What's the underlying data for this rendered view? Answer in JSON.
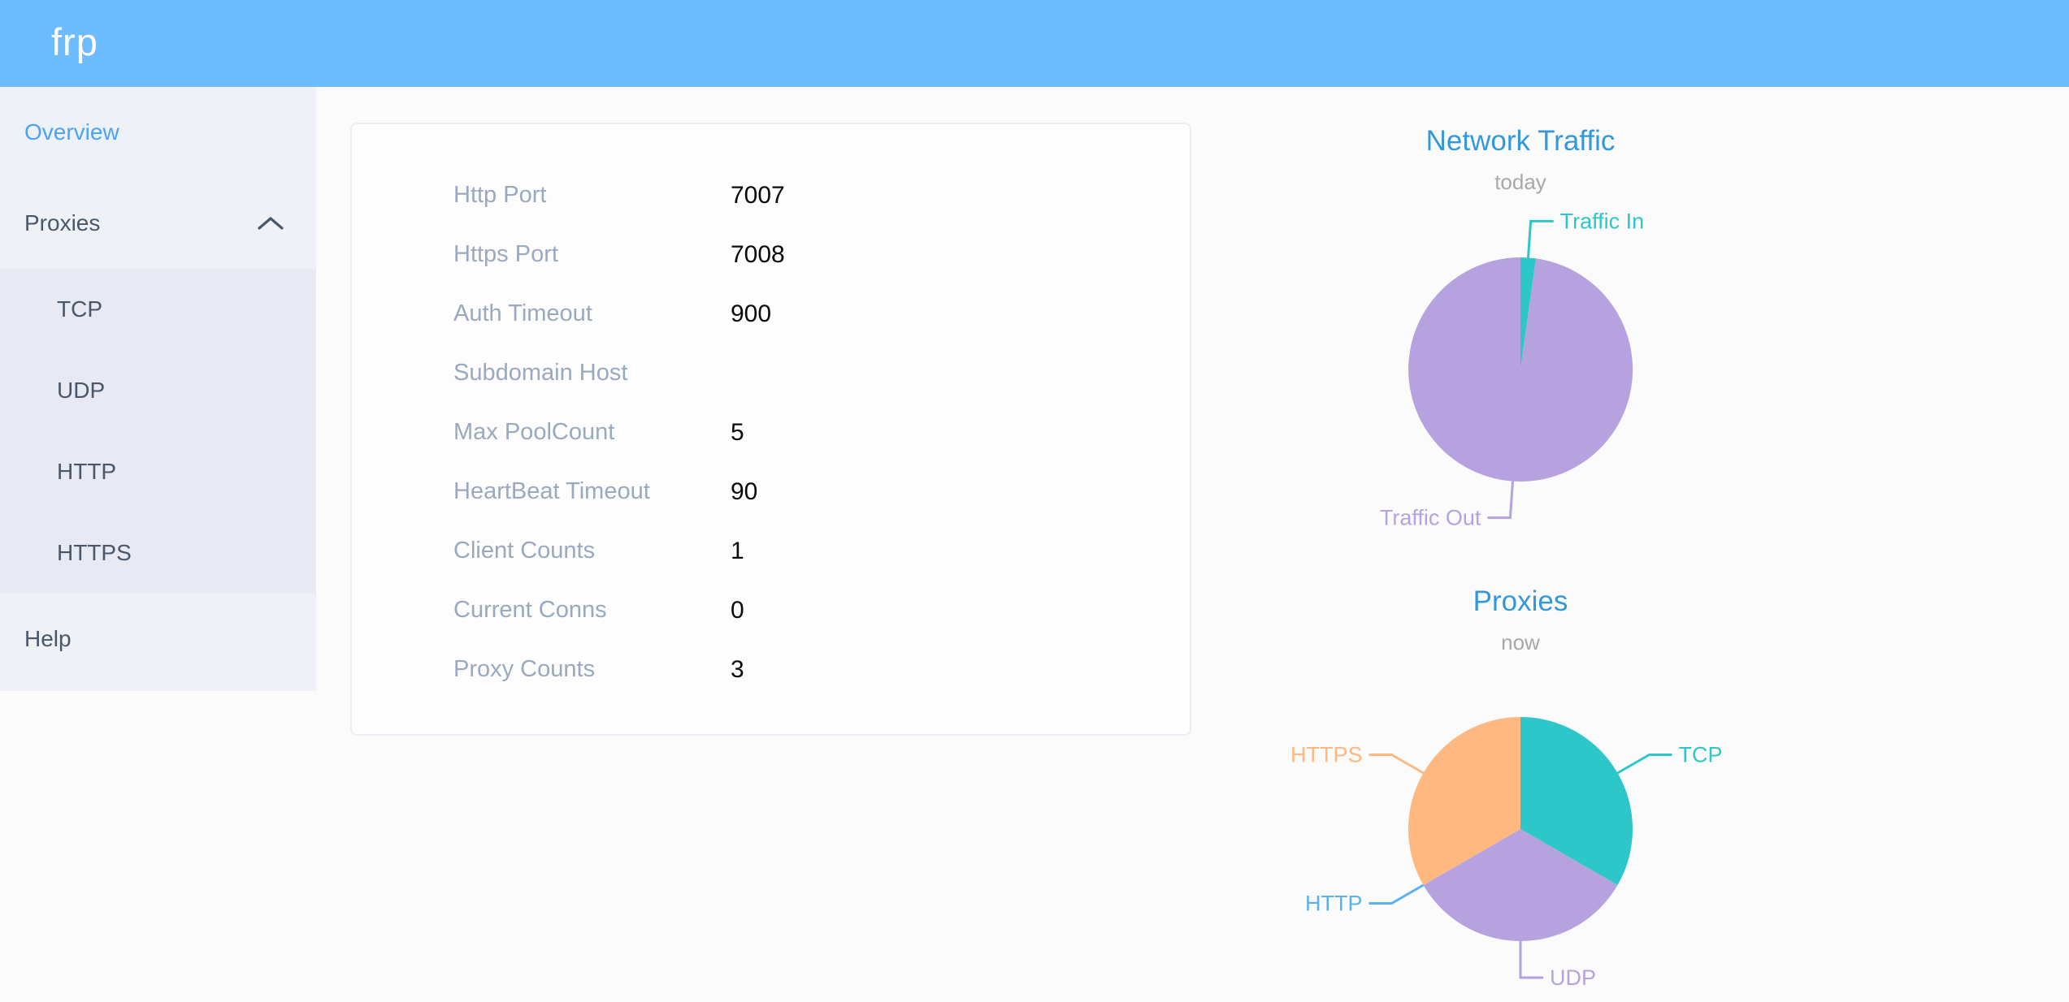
{
  "header": {
    "logo": "frp"
  },
  "sidebar": {
    "overview": "Overview",
    "proxies": "Proxies",
    "submenu": [
      "TCP",
      "UDP",
      "HTTP",
      "HTTPS"
    ],
    "help": "Help"
  },
  "server_info": {
    "rows": [
      {
        "label": "Http Port",
        "value": "7007"
      },
      {
        "label": "Https Port",
        "value": "7008"
      },
      {
        "label": "Auth Timeout",
        "value": "900"
      },
      {
        "label": "Subdomain Host",
        "value": ""
      },
      {
        "label": "Max PoolCount",
        "value": "5"
      },
      {
        "label": "HeartBeat Timeout",
        "value": "90"
      },
      {
        "label": "Client Counts",
        "value": "1"
      },
      {
        "label": "Current Conns",
        "value": "0"
      },
      {
        "label": "Proxy Counts",
        "value": "3"
      }
    ]
  },
  "colors": {
    "header_bg": "#6dbcff",
    "sidebar_bg": "#eef1f6",
    "submenu_bg": "#e7eaf3",
    "menu_text": "#48576a",
    "active_menu_text": "#4aa3f9",
    "chart_title": "#3398db",
    "teal": "#2ec7c9",
    "purple": "#b6a2de",
    "blue": "#5ab1ef",
    "orange": "#ffb980"
  },
  "chart_data": [
    {
      "type": "pie",
      "title": "Network Traffic",
      "subtitle": "today",
      "labels": [
        "Traffic In",
        "Traffic Out"
      ],
      "values": [
        2.2,
        97.8
      ],
      "value_unit": "percent-of-pie (estimated from arc angles)",
      "colors": [
        "#2ec7c9",
        "#b6a2de"
      ],
      "start_angle_deg": 0,
      "direction": "clockwise",
      "legend_position": "callout-labels"
    },
    {
      "type": "pie",
      "title": "Proxies",
      "subtitle": "now",
      "labels": [
        "TCP",
        "UDP",
        "HTTP",
        "HTTPS"
      ],
      "values": [
        1,
        1,
        0,
        1
      ],
      "value_unit": "proxy count",
      "colors": [
        "#2ec7c9",
        "#b6a2de",
        "#5ab1ef",
        "#ffb980"
      ],
      "start_angle_deg": 0,
      "direction": "clockwise",
      "legend_position": "callout-labels"
    }
  ]
}
